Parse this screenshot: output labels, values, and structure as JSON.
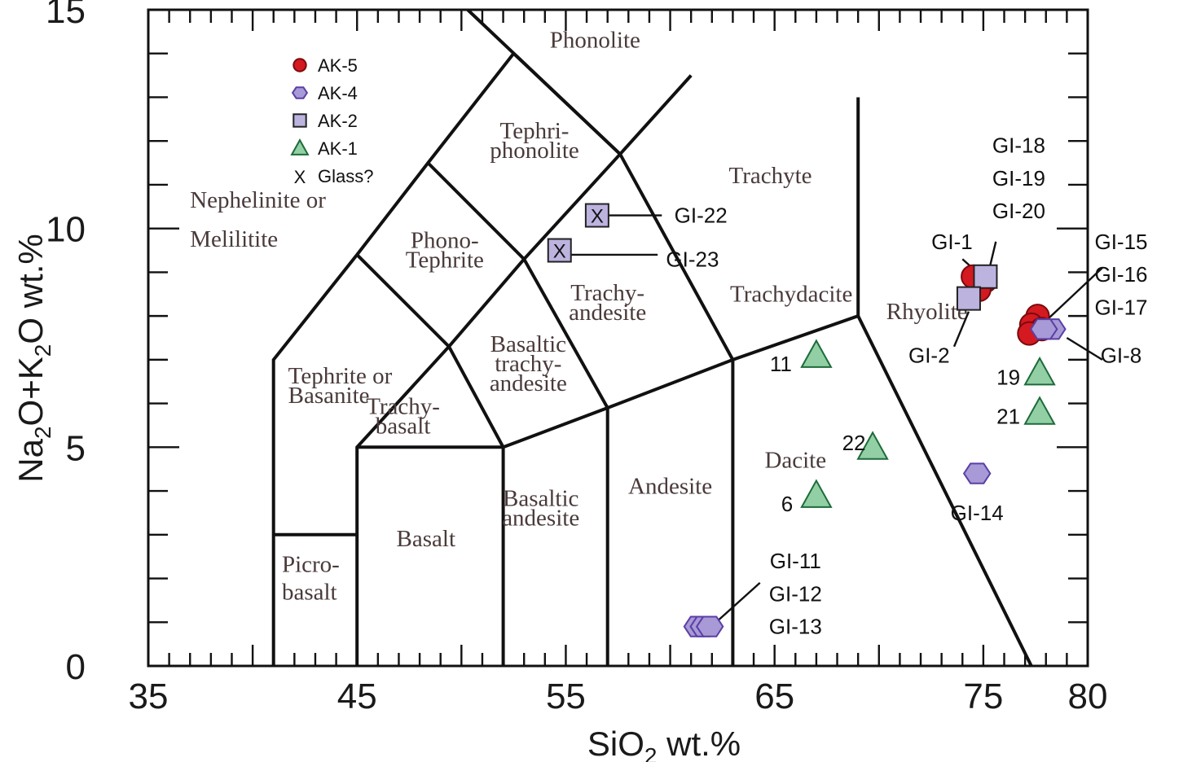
{
  "chart_data": {
    "type": "scatter",
    "title": "",
    "xlabel": "SiO₂ wt.%",
    "ylabel": "Na₂O+K₂O wt.%",
    "xlim": [
      35,
      80
    ],
    "ylim": [
      0,
      15
    ],
    "x_ticks": [
      35,
      45,
      55,
      65,
      75,
      80
    ],
    "y_ticks": [
      0,
      5,
      10,
      15
    ],
    "grid": false,
    "legend_position": "top-left",
    "legend": [
      {
        "symbol": "circle",
        "label": "AK-5",
        "color": "#d41920"
      },
      {
        "symbol": "hexagon",
        "label": "AK-4",
        "color": "#a79ad6"
      },
      {
        "symbol": "square",
        "label": "AK-2",
        "color": "#bdb3df"
      },
      {
        "symbol": "triangle",
        "label": "AK-1",
        "color": "#92cfa5"
      },
      {
        "symbol": "x",
        "label": "Glass?",
        "color": "#111111"
      }
    ],
    "fields": [
      {
        "name": "phonolite",
        "lines": [
          "Phonolite"
        ],
        "x": 56.4,
        "y": 14.3
      },
      {
        "name": "tephriphonolite",
        "lines": [
          "Tephri-",
          "phonolite"
        ],
        "x": 53.5,
        "y": 12.0
      },
      {
        "name": "trachyte",
        "lines": [
          "Trachyte"
        ],
        "x": 64.8,
        "y": 11.2
      },
      {
        "name": "nephelinite",
        "lines": [
          "Nephelinite or",
          "Melilitite"
        ],
        "x": 37.0,
        "y": 10.2
      },
      {
        "name": "phonotephrite",
        "lines": [
          "Phono-",
          "Tephrite"
        ],
        "x": 49.2,
        "y": 9.5
      },
      {
        "name": "trachyandesite",
        "lines": [
          "Trachy-",
          "andesite"
        ],
        "x": 57.0,
        "y": 8.3
      },
      {
        "name": "trachydacite",
        "lines": [
          "Trachydacite"
        ],
        "x": 65.8,
        "y": 8.5
      },
      {
        "name": "rhyolite",
        "lines": [
          "Rhyolite"
        ],
        "x": 72.3,
        "y": 8.1
      },
      {
        "name": "basaltic-trachyandesite",
        "lines": [
          "Basaltic",
          "trachy-",
          "andesite"
        ],
        "x": 53.2,
        "y": 6.9
      },
      {
        "name": "tephrite",
        "lines": [
          "Tephrite or",
          "Basanite"
        ],
        "x": 41.7,
        "y": 6.4
      },
      {
        "name": "trachybasalt",
        "lines": [
          "Trachy-",
          "basalt"
        ],
        "x": 47.2,
        "y": 5.7
      },
      {
        "name": "andesite",
        "lines": [
          "Andesite"
        ],
        "x": 60.0,
        "y": 4.1
      },
      {
        "name": "dacite",
        "lines": [
          "Dacite"
        ],
        "x": 66.0,
        "y": 4.7
      },
      {
        "name": "basaltic-andesite",
        "lines": [
          "Basaltic",
          "andesite"
        ],
        "x": 53.8,
        "y": 3.6
      },
      {
        "name": "basalt",
        "lines": [
          "Basalt"
        ],
        "x": 48.3,
        "y": 2.9
      },
      {
        "name": "picrobasalt",
        "lines": [
          "Picro-",
          "basalt"
        ],
        "x": 41.4,
        "y": 2.0
      }
    ],
    "series": [
      {
        "name": "AK-5",
        "symbol": "circle",
        "color": "#d41920",
        "points": [
          {
            "x": 75.1,
            "y": 8.8
          },
          {
            "x": 74.8,
            "y": 8.6
          },
          {
            "x": 74.5,
            "y": 8.9
          },
          {
            "x": 77.6,
            "y": 8.0
          },
          {
            "x": 77.3,
            "y": 7.8
          },
          {
            "x": 77.8,
            "y": 7.7
          },
          {
            "x": 77.2,
            "y": 7.6
          }
        ]
      },
      {
        "name": "AK-4",
        "symbol": "hexagon",
        "color": "#a79ad6",
        "points": [
          {
            "x": 61.3,
            "y": 0.9
          },
          {
            "x": 61.6,
            "y": 0.9
          },
          {
            "x": 61.9,
            "y": 0.9
          },
          {
            "x": 74.7,
            "y": 4.4
          },
          {
            "x": 78.3,
            "y": 7.7
          },
          {
            "x": 77.9,
            "y": 7.7
          }
        ]
      },
      {
        "name": "AK-2",
        "symbol": "square",
        "color": "#bdb3df",
        "points": [
          {
            "x": 56.5,
            "y": 10.3,
            "glass": true
          },
          {
            "x": 54.7,
            "y": 9.5,
            "glass": true
          },
          {
            "x": 75.1,
            "y": 8.9
          },
          {
            "x": 74.3,
            "y": 8.4
          }
        ]
      },
      {
        "name": "AK-1",
        "symbol": "triangle",
        "color": "#92cfa5",
        "points": [
          {
            "x": 67.0,
            "y": 7.1
          },
          {
            "x": 77.7,
            "y": 6.7
          },
          {
            "x": 77.7,
            "y": 5.8
          },
          {
            "x": 69.7,
            "y": 5.0
          },
          {
            "x": 67.0,
            "y": 3.9
          }
        ]
      }
    ],
    "annotations": [
      {
        "label": "GI-22",
        "point": [
          56.5,
          10.3
        ],
        "label_at": [
          60.2,
          10.3
        ],
        "anchor": "start",
        "leader": [
          [
            56.8,
            10.3
          ],
          [
            59.6,
            10.3
          ]
        ]
      },
      {
        "label": "GI-23",
        "point": [
          54.7,
          9.5
        ],
        "label_at": [
          59.8,
          9.3
        ],
        "anchor": "start",
        "leader": [
          [
            55.0,
            9.4
          ],
          [
            59.4,
            9.4
          ]
        ]
      },
      {
        "label": "GI-18",
        "point": [
          75.1,
          8.8
        ],
        "label_at": [
          76.7,
          11.9
        ],
        "anchor": "middle",
        "leader": null
      },
      {
        "label": "GI-19",
        "point": [
          75.1,
          8.8
        ],
        "label_at": [
          76.7,
          11.15
        ],
        "anchor": "middle",
        "leader": null
      },
      {
        "label": "GI-20",
        "point": [
          75.1,
          8.8
        ],
        "label_at": [
          76.7,
          10.4
        ],
        "anchor": "middle",
        "leader": [
          [
            75.6,
            9.7
          ],
          [
            75.2,
            8.9
          ]
        ]
      },
      {
        "label": "GI-1",
        "point": [
          74.5,
          8.9
        ],
        "label_at": [
          73.5,
          9.7
        ],
        "anchor": "middle",
        "leader": [
          [
            74.0,
            9.3
          ],
          [
            74.7,
            9.0
          ]
        ]
      },
      {
        "label": "GI-2",
        "point": [
          74.3,
          8.4
        ],
        "label_at": [
          72.4,
          7.1
        ],
        "anchor": "middle",
        "leader": [
          [
            73.6,
            7.3
          ],
          [
            74.3,
            8.1
          ]
        ]
      },
      {
        "label": "GI-15",
        "point": [
          77.6,
          8.0
        ],
        "label_at": [
          81.6,
          9.7
        ],
        "anchor": "middle",
        "leader": null
      },
      {
        "label": "GI-16",
        "point": [
          77.6,
          8.0
        ],
        "label_at": [
          81.6,
          8.95
        ],
        "anchor": "middle",
        "leader": [
          [
            80.7,
            9.1
          ],
          [
            77.8,
            7.8
          ]
        ]
      },
      {
        "label": "GI-17",
        "point": [
          77.6,
          8.0
        ],
        "label_at": [
          81.6,
          8.2
        ],
        "anchor": "middle",
        "leader": null
      },
      {
        "label": "GI-8",
        "point": [
          78.3,
          7.7
        ],
        "label_at": [
          81.6,
          7.1
        ],
        "anchor": "middle",
        "leader": [
          [
            79.0,
            7.5
          ],
          [
            80.7,
            7.0
          ]
        ]
      },
      {
        "label": "19",
        "point": [
          77.7,
          6.7
        ],
        "label_at": [
          76.2,
          6.6
        ],
        "anchor": "middle",
        "leader": null
      },
      {
        "label": "21",
        "point": [
          77.7,
          5.8
        ],
        "label_at": [
          76.2,
          5.7
        ],
        "anchor": "middle",
        "leader": null
      },
      {
        "label": "11",
        "point": [
          67.0,
          7.1
        ],
        "label_at": [
          65.3,
          6.9
        ],
        "anchor": "middle",
        "leader": null
      },
      {
        "label": "22",
        "point": [
          69.7,
          5.0
        ],
        "label_at": [
          68.8,
          5.1
        ],
        "anchor": "middle",
        "leader": null
      },
      {
        "label": "6",
        "point": [
          67.0,
          3.9
        ],
        "label_at": [
          65.6,
          3.7
        ],
        "anchor": "middle",
        "leader": null
      },
      {
        "label": "GI-14",
        "point": [
          74.7,
          4.4
        ],
        "label_at": [
          74.7,
          3.5
        ],
        "anchor": "middle",
        "leader": null
      },
      {
        "label": "GI-11",
        "point": [
          61.6,
          0.9
        ],
        "label_at": [
          66.0,
          2.4
        ],
        "anchor": "middle",
        "leader": null
      },
      {
        "label": "GI-12",
        "point": [
          61.6,
          0.9
        ],
        "label_at": [
          66.0,
          1.65
        ],
        "anchor": "middle",
        "leader": [
          [
            64.3,
            1.9
          ],
          [
            62.2,
            1.0
          ]
        ]
      },
      {
        "label": "GI-13",
        "point": [
          61.6,
          0.9
        ],
        "label_at": [
          66.0,
          0.9
        ],
        "anchor": "middle",
        "leader": null
      }
    ],
    "boundaries": [
      [
        [
          41,
          0
        ],
        [
          41,
          7
        ],
        [
          45,
          9.4
        ],
        [
          48.4,
          11.5
        ],
        [
          52.5,
          14
        ],
        [
          57.6,
          11.7
        ],
        [
          61,
          13.5
        ]
      ],
      [
        [
          45,
          0
        ],
        [
          45,
          5
        ],
        [
          49.4,
          7.3
        ],
        [
          53,
          9.3
        ],
        [
          57.6,
          11.7
        ]
      ],
      [
        [
          45,
          5
        ],
        [
          52,
          5
        ],
        [
          57,
          5.9
        ],
        [
          63,
          7
        ],
        [
          69,
          8
        ],
        [
          77.3,
          0
        ]
      ],
      [
        [
          52,
          0
        ],
        [
          52,
          5
        ],
        [
          49.4,
          7.3
        ],
        [
          45,
          9.4
        ]
      ],
      [
        [
          57,
          0
        ],
        [
          57,
          5.9
        ],
        [
          53,
          9.3
        ],
        [
          48.4,
          11.5
        ]
      ],
      [
        [
          63,
          0
        ],
        [
          63,
          7
        ],
        [
          57.6,
          11.7
        ],
        [
          50.3,
          15
        ]
      ],
      [
        [
          69,
          8
        ],
        [
          69,
          13
        ]
      ],
      [
        [
          41,
          3
        ],
        [
          45,
          3
        ]
      ]
    ]
  }
}
